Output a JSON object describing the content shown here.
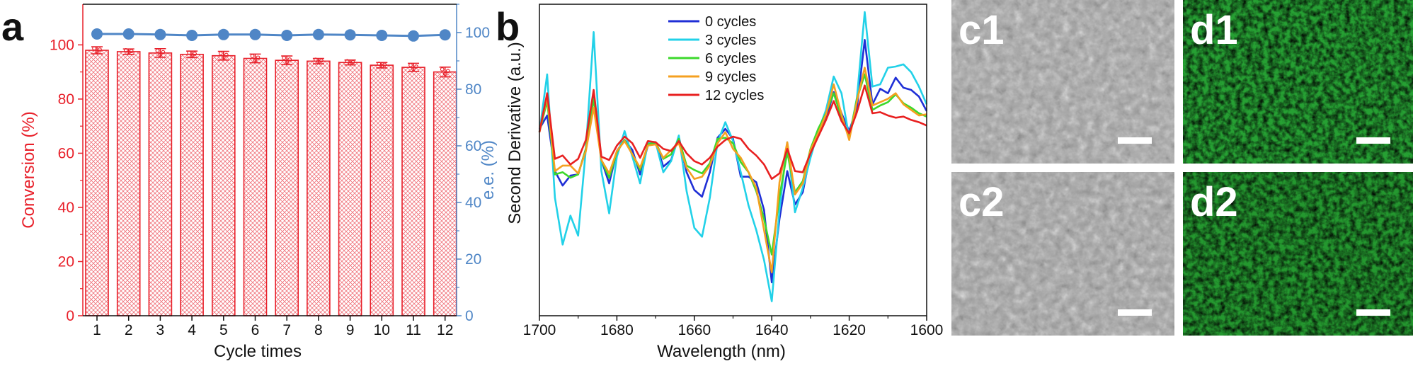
{
  "chart_data": [
    {
      "panel": "a",
      "type": "bar+line",
      "categories": [
        "1",
        "2",
        "3",
        "4",
        "5",
        "6",
        "7",
        "8",
        "9",
        "10",
        "11",
        "12"
      ],
      "series": [
        {
          "name": "Conversion (%)",
          "kind": "bar",
          "axis": "left",
          "values": [
            98.0,
            97.5,
            97.0,
            96.5,
            96.0,
            95.0,
            94.3,
            94.0,
            93.5,
            92.5,
            91.7,
            90.0
          ],
          "errors": [
            1.3,
            1.0,
            1.6,
            1.2,
            1.6,
            1.6,
            1.6,
            1.0,
            0.9,
            1.0,
            1.5,
            1.8
          ]
        },
        {
          "name": "e.e. (%)",
          "kind": "line",
          "axis": "right",
          "values": [
            99.5,
            99.5,
            99.3,
            99.0,
            99.3,
            99.3,
            99.0,
            99.3,
            99.2,
            99.0,
            98.8,
            99.2
          ]
        }
      ],
      "xlabel": "Cycle times",
      "ylabel": "Conversion (%)",
      "y2label": "e.e. (%)",
      "ylim": [
        0,
        115
      ],
      "y2lim": [
        0,
        110
      ],
      "yticks": [
        0,
        20,
        40,
        60,
        80,
        100
      ],
      "y2ticks": [
        0,
        20,
        40,
        60,
        80,
        100
      ],
      "colors": {
        "bar": "#e8202a",
        "line": "#4f86c6",
        "left_axis": "#e8202a",
        "right_axis": "#4f86c6"
      }
    },
    {
      "panel": "b",
      "type": "line",
      "x": [
        1700,
        1698,
        1696,
        1694,
        1692,
        1690,
        1688,
        1686,
        1684,
        1682,
        1680,
        1678,
        1676,
        1674,
        1672,
        1670,
        1668,
        1666,
        1664,
        1662,
        1660,
        1658,
        1656,
        1654,
        1652,
        1650,
        1648,
        1646,
        1644,
        1642,
        1640,
        1638,
        1636,
        1634,
        1632,
        1630,
        1628,
        1626,
        1624,
        1622,
        1620,
        1618,
        1616,
        1614,
        1612,
        1610,
        1608,
        1606,
        1604,
        1602,
        1600
      ],
      "series": [
        {
          "name": "0 cycles",
          "color": "#1f2fd6",
          "values": [
            0.63,
            0.75,
            0.25,
            0.12,
            0.21,
            0.22,
            0.45,
            0.93,
            0.35,
            0.14,
            0.43,
            0.53,
            0.44,
            0.22,
            0.48,
            0.51,
            0.29,
            0.35,
            0.56,
            0.24,
            0.08,
            0.02,
            0.24,
            0.55,
            0.63,
            0.54,
            0.2,
            0.2,
            0.15,
            -0.1,
            -0.75,
            -0.18,
            0.25,
            -0.05,
            0.06,
            0.41,
            0.58,
            0.72,
            0.96,
            0.77,
            0.61,
            0.82,
            1.43,
            0.85,
            0.99,
            0.95,
            1.09,
            1.0,
            0.98,
            0.92,
            0.79
          ]
        },
        {
          "name": "3 cycles",
          "color": "#22d1e8",
          "values": [
            0.6,
            1.12,
            0.01,
            -0.41,
            -0.15,
            -0.33,
            0.45,
            1.5,
            0.25,
            -0.13,
            0.38,
            0.61,
            0.38,
            0.14,
            0.5,
            0.51,
            0.24,
            0.34,
            0.57,
            0.07,
            -0.26,
            -0.34,
            0.01,
            0.51,
            0.69,
            0.52,
            0.24,
            -0.06,
            -0.28,
            -0.55,
            -0.92,
            -0.1,
            0.51,
            -0.12,
            0.1,
            0.37,
            0.61,
            0.8,
            1.1,
            0.95,
            0.55,
            0.91,
            1.68,
            1.01,
            1.03,
            1.18,
            1.19,
            1.21,
            1.14,
            1.01,
            0.85
          ]
        },
        {
          "name": "6 cycles",
          "color": "#3cd82c",
          "values": [
            0.6,
            0.88,
            0.22,
            0.24,
            0.19,
            0.22,
            0.45,
            0.9,
            0.35,
            0.19,
            0.42,
            0.53,
            0.4,
            0.26,
            0.49,
            0.51,
            0.36,
            0.4,
            0.54,
            0.3,
            0.26,
            0.23,
            0.32,
            0.54,
            0.55,
            0.5,
            0.33,
            0.24,
            0.07,
            -0.18,
            -0.5,
            0.02,
            0.42,
            0.06,
            0.16,
            0.45,
            0.63,
            0.77,
            0.95,
            0.73,
            0.55,
            0.9,
            1.12,
            0.8,
            0.84,
            0.87,
            0.94,
            0.86,
            0.82,
            0.77,
            0.74
          ]
        },
        {
          "name": "9 cycles",
          "color": "#f5a020",
          "values": [
            0.6,
            0.92,
            0.25,
            0.3,
            0.3,
            0.23,
            0.43,
            0.82,
            0.35,
            0.23,
            0.43,
            0.52,
            0.4,
            0.28,
            0.48,
            0.49,
            0.37,
            0.44,
            0.5,
            0.28,
            0.18,
            0.2,
            0.3,
            0.5,
            0.6,
            0.45,
            0.37,
            0.24,
            0.1,
            -0.28,
            -0.66,
            0.15,
            0.51,
            0.04,
            0.14,
            0.44,
            0.59,
            0.76,
            1.03,
            0.76,
            0.53,
            0.88,
            1.18,
            0.84,
            0.87,
            0.9,
            0.95,
            0.85,
            0.8,
            0.75,
            0.76
          ]
        },
        {
          "name": "12 cycles",
          "color": "#e82020",
          "values": [
            0.6,
            0.95,
            0.36,
            0.39,
            0.31,
            0.36,
            0.53,
            0.98,
            0.38,
            0.35,
            0.48,
            0.56,
            0.5,
            0.37,
            0.52,
            0.51,
            0.45,
            0.43,
            0.52,
            0.41,
            0.34,
            0.31,
            0.37,
            0.47,
            0.53,
            0.56,
            0.54,
            0.45,
            0.39,
            0.31,
            0.18,
            0.23,
            0.45,
            0.25,
            0.24,
            0.41,
            0.56,
            0.71,
            0.88,
            0.7,
            0.59,
            0.78,
            1.02,
            0.77,
            0.78,
            0.75,
            0.73,
            0.74,
            0.71,
            0.69,
            0.66
          ]
        }
      ],
      "xlabel": "Wavelength (nm)",
      "ylabel": "Second Derivative (a.u.)",
      "xlim": [
        1700,
        1600
      ],
      "xticks": [
        1700,
        1680,
        1660,
        1640,
        1620,
        1600
      ],
      "ylim": [
        -1.05,
        1.75
      ],
      "legend_position": "top-center"
    }
  ],
  "panel_labels": {
    "a": "a",
    "b": "b"
  },
  "micrographs": [
    {
      "label": "c1",
      "kind": "SEM",
      "tone": "#a3a3a3",
      "noise_color": "#3a3a3a"
    },
    {
      "label": "d1",
      "kind": "fluorescence",
      "tone": "#26a033",
      "noise_color": "#0f4f16"
    },
    {
      "label": "c2",
      "kind": "SEM",
      "tone": "#a0a0a0",
      "noise_color": "#343434"
    },
    {
      "label": "d2",
      "kind": "fluorescence",
      "tone": "#24982f",
      "noise_color": "#0e4a14"
    }
  ]
}
